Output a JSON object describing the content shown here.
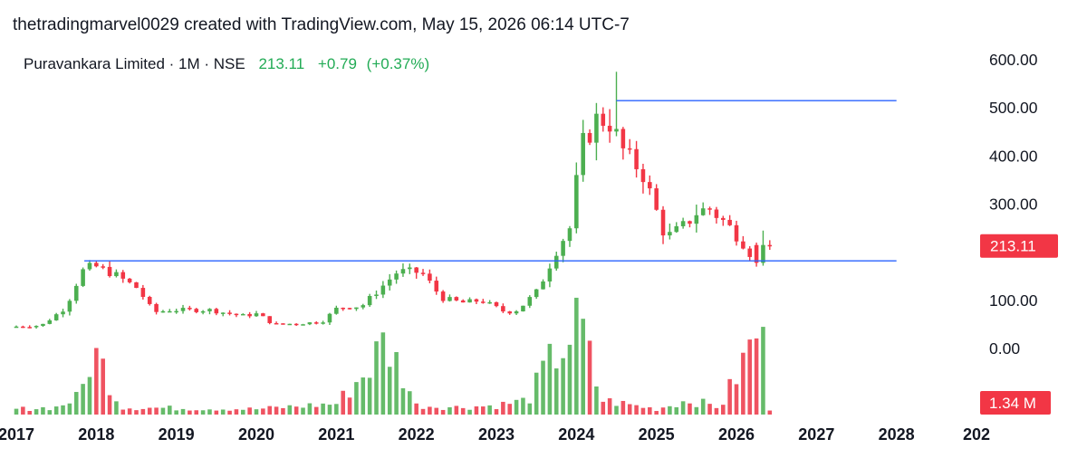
{
  "header": {
    "credit": "thetradingmarvel0029 created with TradingView.com, May 15, 2026 06:14 UTC-7"
  },
  "legend": {
    "symbol": "Puravankara Limited · 1M · NSE",
    "price": "213.11",
    "change": "+0.79",
    "change_pct": "(+0.37%)"
  },
  "colors": {
    "up": "#4caf50",
    "down": "#f23645",
    "line": "#2962ff",
    "badge": "#f23645"
  },
  "chart_data": {
    "type": "candlestick",
    "title": "Puravankara Limited · 1M · NSE",
    "price_axis": {
      "ticks": [
        "600.00",
        "500.00",
        "400.00",
        "300.00",
        "100.00",
        "0.00"
      ],
      "range": [
        -5,
        640
      ]
    },
    "time_axis": {
      "ticks": [
        "2017",
        "2018",
        "2019",
        "2020",
        "2021",
        "2022",
        "2023",
        "2024",
        "2025",
        "2026",
        "2027",
        "2028",
        "202"
      ],
      "range": [
        2017.0,
        2029.0
      ]
    },
    "current_price": "213.11",
    "current_volume": "1.34 M",
    "volume_axis_max": 5.0,
    "horizontal_lines": [
      {
        "from": 2017.85,
        "to": 2028.0,
        "price": 182
      },
      {
        "from": 2024.5,
        "to": 2028.0,
        "price": 515
      }
    ],
    "anchors": [
      [
        2017.0,
        45
      ],
      [
        2017.4,
        48
      ],
      [
        2017.7,
        85
      ],
      [
        2017.9,
        160
      ],
      [
        2018.05,
        172
      ],
      [
        2018.3,
        155
      ],
      [
        2018.6,
        125
      ],
      [
        2018.8,
        75
      ],
      [
        2019.0,
        80
      ],
      [
        2019.5,
        80
      ],
      [
        2019.9,
        68
      ],
      [
        2020.1,
        72
      ],
      [
        2020.3,
        50
      ],
      [
        2020.6,
        52
      ],
      [
        2020.9,
        55
      ],
      [
        2021.1,
        85
      ],
      [
        2021.4,
        88
      ],
      [
        2021.6,
        120
      ],
      [
        2021.85,
        160
      ],
      [
        2022.15,
        158
      ],
      [
        2022.4,
        105
      ],
      [
        2022.65,
        95
      ],
      [
        2022.9,
        100
      ],
      [
        2023.2,
        75
      ],
      [
        2023.35,
        80
      ],
      [
        2023.6,
        120
      ],
      [
        2023.85,
        210
      ],
      [
        2024.0,
        250
      ],
      [
        2024.15,
        420
      ],
      [
        2024.35,
        480
      ],
      [
        2024.5,
        470
      ],
      [
        2024.7,
        400
      ],
      [
        2024.9,
        370
      ],
      [
        2025.05,
        300
      ],
      [
        2025.2,
        230
      ],
      [
        2025.4,
        250
      ],
      [
        2025.6,
        285
      ],
      [
        2025.75,
        290
      ],
      [
        2025.95,
        260
      ],
      [
        2026.15,
        225
      ],
      [
        2026.25,
        200
      ],
      [
        2026.4,
        213.11
      ]
    ],
    "special_bars": {
      "2024.5": {
        "high": 575
      },
      "2026.25": {
        "open": 215,
        "close": 178,
        "low": 170,
        "high": 220
      },
      "2026.33": {
        "open": 178,
        "close": 215,
        "low": 172,
        "high": 245
      },
      "2026.42": {
        "open": 215,
        "close": 213.11,
        "low": 205,
        "high": 225
      }
    },
    "volume_anchors": [
      [
        2017.0,
        0.3
      ],
      [
        2017.5,
        0.4
      ],
      [
        2017.8,
        1.0
      ],
      [
        2017.95,
        3.5
      ],
      [
        2018.1,
        2.5
      ],
      [
        2018.3,
        0.4
      ],
      [
        2019.0,
        0.35
      ],
      [
        2020.0,
        0.3
      ],
      [
        2021.0,
        0.6
      ],
      [
        2021.4,
        2.5
      ],
      [
        2021.6,
        4.0
      ],
      [
        2021.8,
        2.5
      ],
      [
        2022.0,
        0.5
      ],
      [
        2022.5,
        0.4
      ],
      [
        2023.0,
        0.5
      ],
      [
        2023.4,
        0.8
      ],
      [
        2023.6,
        2.5
      ],
      [
        2023.85,
        3.8
      ],
      [
        2024.05,
        5.1
      ],
      [
        2024.3,
        0.8
      ],
      [
        2025.0,
        0.3
      ],
      [
        2025.4,
        0.8
      ],
      [
        2025.8,
        0.4
      ],
      [
        2026.1,
        3.0
      ],
      [
        2026.3,
        5.1
      ],
      [
        2026.42,
        0.2
      ]
    ]
  }
}
